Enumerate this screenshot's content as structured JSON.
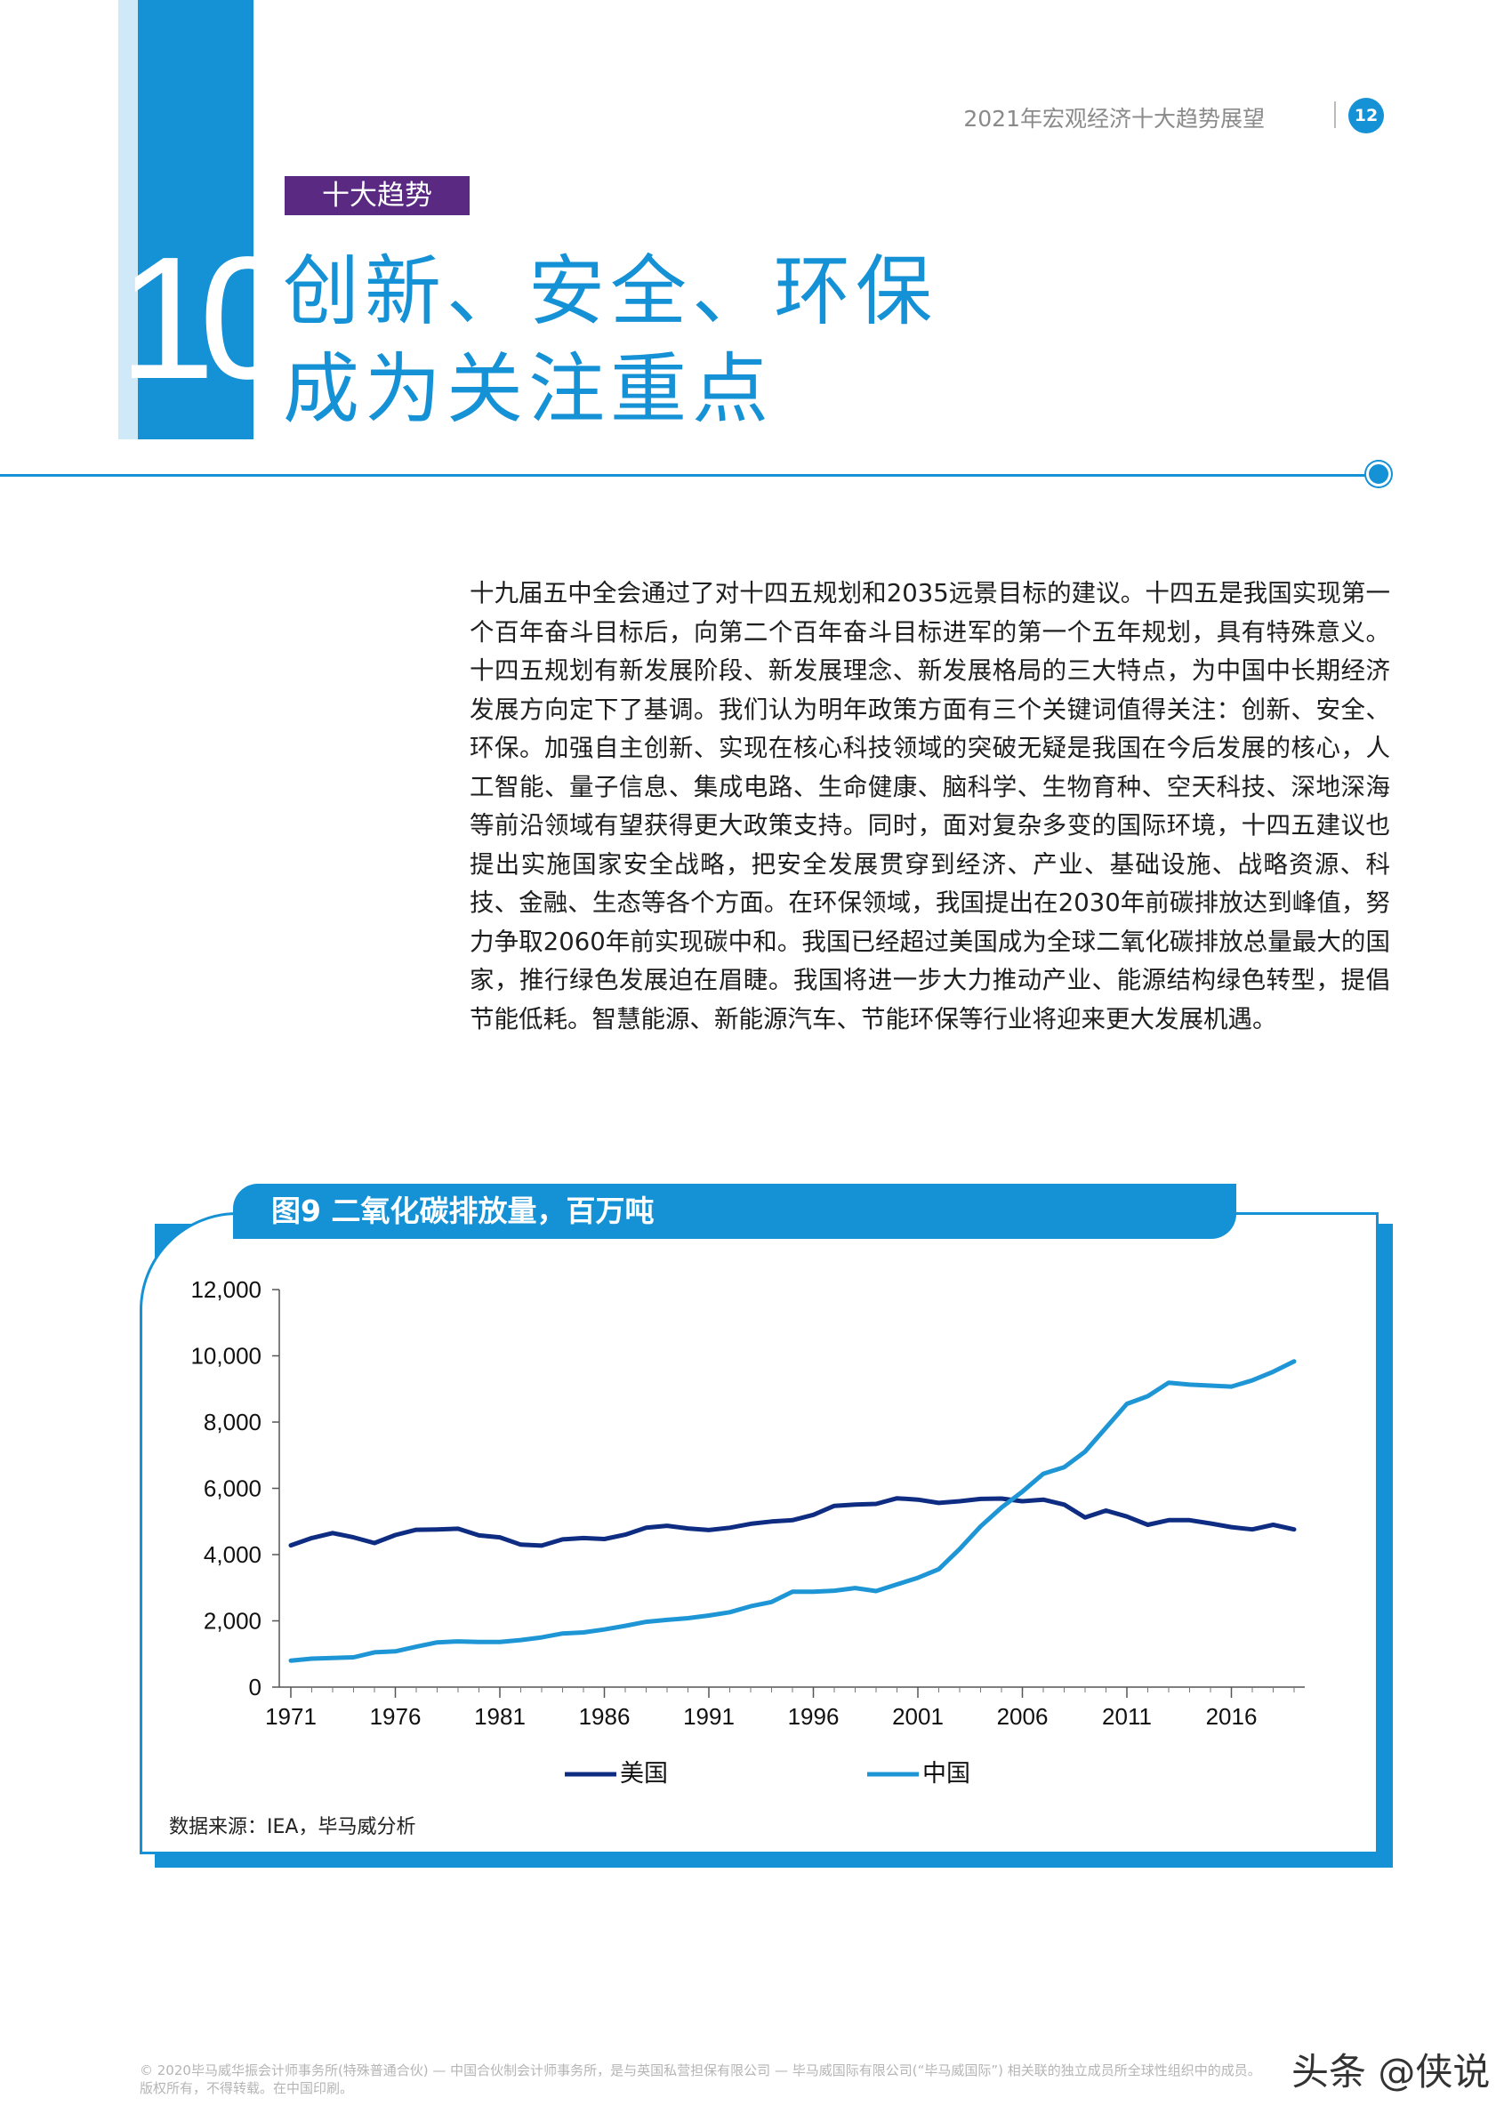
{
  "header": {
    "doc_title": "2021年宏观经济十大趋势展望",
    "page_number": "12"
  },
  "section": {
    "tag": "十大趋势",
    "number": "10",
    "title_line1": "创新、安全、环保",
    "title_line2": "成为关注重点"
  },
  "body_text": "十九届五中全会通过了对十四五规划和2035远景目标的建议。十四五是我国实现第一个百年奋斗目标后，向第二个百年奋斗目标进军的第一个五年规划，具有特殊意义。十四五规划有新发展阶段、新发展理念、新发展格局的三大特点，为中国中长期经济发展方向定下了基调。我们认为明年政策方面有三个关键词值得关注：创新、安全、环保。加强自主创新、实现在核心科技领域的突破无疑是我国在今后发展的核心，人工智能、量子信息、集成电路、生命健康、脑科学、生物育种、空天科技、深地深海等前沿领域有望获得更大政策支持。同时，面对复杂多变的国际环境，十四五建议也提出实施国家安全战略，把安全发展贯穿到经济、产业、基础设施、战略资源、科技、金融、生态等各个方面。在环保领域，我国提出在2030年前碳排放达到峰值，努力争取2060年前实现碳中和。我国已经超过美国成为全球二氧化碳排放总量最大的国家，推行绿色发展迫在眉睫。我国将进一步大力推动产业、能源结构绿色转型，提倡节能低耗。智慧能源、新能源汽车、节能环保等行业将迎来更大发展机遇。",
  "chart_title": "图9  二氧化碳排放量，百万吨",
  "source": "数据来源：IEA，毕马威分析",
  "chart_data": {
    "type": "line",
    "title": "图9  二氧化碳排放量，百万吨",
    "xlabel": "",
    "ylabel": "",
    "x": [
      1971,
      1972,
      1973,
      1974,
      1975,
      1976,
      1977,
      1978,
      1979,
      1980,
      1981,
      1982,
      1983,
      1984,
      1985,
      1986,
      1987,
      1988,
      1989,
      1990,
      1991,
      1992,
      1993,
      1994,
      1995,
      1996,
      1997,
      1998,
      1999,
      2000,
      2001,
      2002,
      2003,
      2004,
      2005,
      2006,
      2007,
      2008,
      2009,
      2010,
      2011,
      2012,
      2013,
      2014,
      2015,
      2016,
      2017,
      2018,
      2019
    ],
    "x_ticks": [
      1971,
      1976,
      1981,
      1986,
      1991,
      1996,
      2001,
      2006,
      2011,
      2016
    ],
    "x_tick_labels": [
      "1971",
      "1976",
      "1981",
      "1986",
      "1991",
      "1996",
      "2001",
      "2006",
      "2011",
      "2016"
    ],
    "ylim": [
      0,
      12000
    ],
    "y_ticks": [
      0,
      2000,
      4000,
      6000,
      8000,
      10000,
      12000
    ],
    "y_tick_labels": [
      "0",
      "2,000",
      "4,000",
      "6,000",
      "8,000",
      "10,000",
      "12,000"
    ],
    "grid": false,
    "legend_position": "bottom",
    "series": [
      {
        "name": "美国",
        "color": "#0e2d82",
        "values": [
          4280,
          4500,
          4650,
          4520,
          4350,
          4590,
          4750,
          4760,
          4780,
          4580,
          4520,
          4300,
          4270,
          4460,
          4500,
          4470,
          4600,
          4810,
          4870,
          4790,
          4740,
          4810,
          4930,
          5000,
          5040,
          5200,
          5470,
          5510,
          5530,
          5700,
          5660,
          5560,
          5610,
          5680,
          5690,
          5610,
          5660,
          5510,
          5120,
          5330,
          5150,
          4900,
          5040,
          5040,
          4940,
          4830,
          4760,
          4900,
          4760
        ]
      },
      {
        "name": "中国",
        "color": "#1e96d6",
        "values": [
          800,
          860,
          880,
          900,
          1050,
          1080,
          1220,
          1350,
          1380,
          1360,
          1360,
          1420,
          1500,
          1620,
          1650,
          1740,
          1850,
          1970,
          2030,
          2080,
          2160,
          2260,
          2440,
          2570,
          2880,
          2880,
          2910,
          2990,
          2900,
          3100,
          3300,
          3560,
          4170,
          4850,
          5420,
          5900,
          6440,
          6640,
          7110,
          7830,
          8550,
          8780,
          9190,
          9130,
          9100,
          9070,
          9260,
          9520,
          9830
        ]
      }
    ]
  },
  "footer": {
    "line1": "© 2020毕马威华振会计师事务所(特殊普通合伙) — 中国合伙制会计师事务所，是与英国私营担保有限公司 — 毕马威国际有限公司(“毕马威国际”) 相关联的独立成员所全球性组织中的成员。",
    "line2": "版权所有，不得转载。在中国印刷。"
  },
  "watermark": "头条 @侠说"
}
